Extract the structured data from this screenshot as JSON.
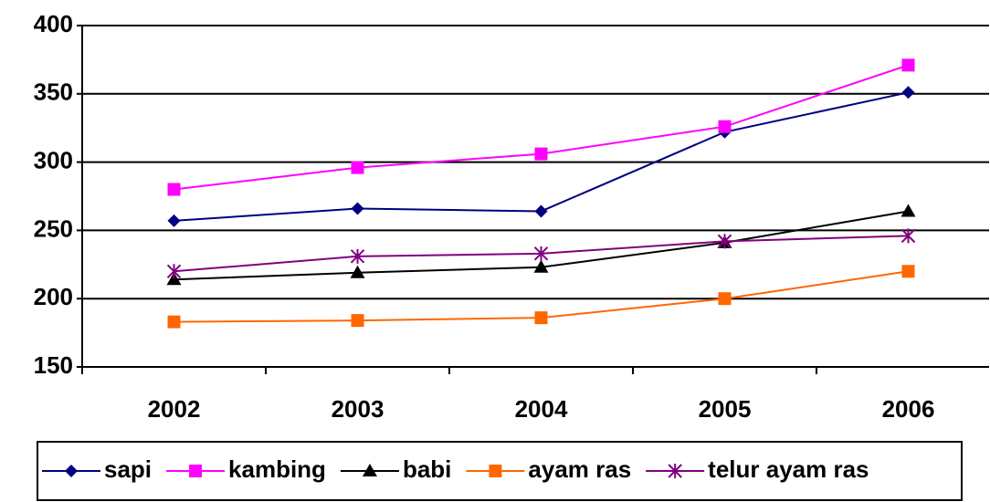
{
  "chart_data": {
    "type": "line",
    "categories": [
      "2002",
      "2003",
      "2004",
      "2005",
      "2006"
    ],
    "ylim": [
      150,
      400
    ],
    "yticks": [
      150,
      200,
      250,
      300,
      350,
      400
    ],
    "grid": true,
    "series": [
      {
        "name": "sapi",
        "color": "#000080",
        "marker": "diamond",
        "values": [
          257,
          266,
          264,
          322,
          351
        ]
      },
      {
        "name": "kambing",
        "color": "#ff00ff",
        "marker": "square",
        "values": [
          280,
          296,
          306,
          326,
          371
        ]
      },
      {
        "name": "babi",
        "color": "#000000",
        "marker": "triangle",
        "values": [
          214,
          219,
          223,
          241,
          264
        ]
      },
      {
        "name": "ayam ras",
        "color": "#ff6600",
        "marker": "square",
        "values": [
          183,
          184,
          186,
          200,
          220
        ]
      },
      {
        "name": "telur ayam ras",
        "color": "#800080",
        "marker": "asterisk",
        "values": [
          220,
          231,
          233,
          242,
          246
        ]
      }
    ],
    "legend": "bottom"
  }
}
